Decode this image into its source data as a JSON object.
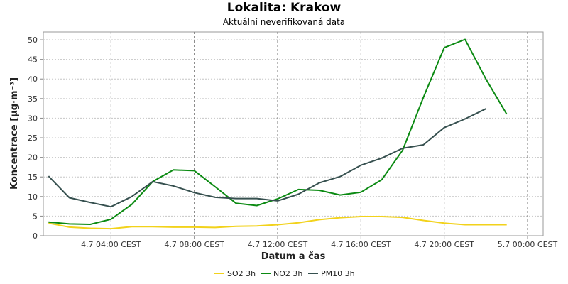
{
  "chart_data": {
    "type": "line",
    "title": "Lokalita: Krakow",
    "subtitle": "Aktuální neverifikovaná data",
    "xlabel": "Datum a čas",
    "ylabel": "Koncentrace [µg·m⁻³]",
    "ylim": [
      0,
      52
    ],
    "yticks": [
      0,
      5,
      10,
      15,
      20,
      25,
      30,
      35,
      40,
      45,
      50
    ],
    "xlim_hours": [
      0.75,
      24.75
    ],
    "xticks": [
      {
        "h": 4,
        "label": "4.7 04:00 CEST"
      },
      {
        "h": 8,
        "label": "4.7 08:00 CEST"
      },
      {
        "h": 12,
        "label": "4.7 12:00 CEST"
      },
      {
        "h": 16,
        "label": "4.7 16:00 CEST"
      },
      {
        "h": 20,
        "label": "4.7 20:00 CEST"
      },
      {
        "h": 24,
        "label": "5.7 00:00 CEST"
      }
    ],
    "x_hours": [
      1,
      2,
      3,
      4,
      5,
      6,
      7,
      8,
      9,
      10,
      11,
      12,
      13,
      14,
      15,
      16,
      17,
      18,
      19,
      20,
      21,
      22,
      23
    ],
    "grid": true,
    "legend_position": "bottom",
    "series": [
      {
        "name": "SO2 3h",
        "color": "#f2d21b",
        "values": [
          3.2,
          2.2,
          1.9,
          1.8,
          2.3,
          2.3,
          2.2,
          2.2,
          2.1,
          2.4,
          2.5,
          2.8,
          3.3,
          4.1,
          4.6,
          4.9,
          4.9,
          4.7,
          3.9,
          3.2,
          2.8,
          2.8,
          2.8
        ]
      },
      {
        "name": "NO2 3h",
        "color": "#0b8a12",
        "values": [
          3.5,
          3.0,
          2.9,
          4.2,
          8.0,
          13.8,
          16.8,
          16.6,
          12.5,
          8.3,
          7.7,
          9.4,
          11.8,
          11.6,
          10.4,
          11.1,
          14.3,
          21.8,
          35.3,
          48.0,
          50.1,
          40.0,
          31.0
        ]
      },
      {
        "name": "PM10 3h",
        "color": "#36504f",
        "values": [
          15.2,
          9.7,
          8.5,
          7.4,
          10.0,
          13.8,
          12.7,
          11.0,
          9.8,
          9.5,
          9.5,
          8.9,
          10.6,
          13.5,
          15.1,
          18.0,
          19.8,
          22.3,
          23.2,
          27.6,
          29.8,
          32.4,
          null
        ]
      }
    ]
  }
}
